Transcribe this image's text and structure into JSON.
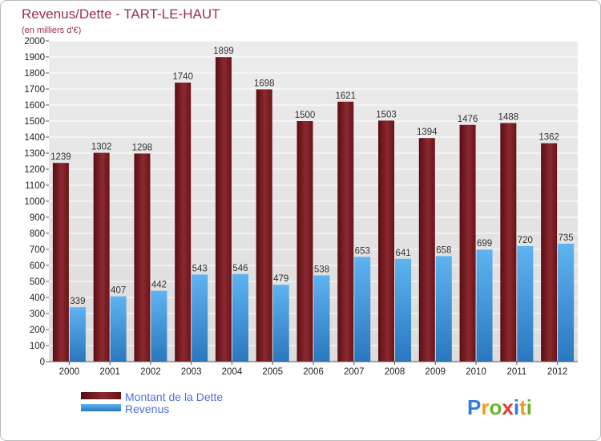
{
  "chart_data": {
    "type": "bar",
    "title": "Revenus/Dette - TART-LE-HAUT",
    "subtitle": "(en milliers d'€)",
    "categories": [
      "2000",
      "2001",
      "2002",
      "2003",
      "2004",
      "2005",
      "2006",
      "2007",
      "2008",
      "2009",
      "2010",
      "2011",
      "2012"
    ],
    "series": [
      {
        "name": "Montant de la Dette",
        "color": "#7a1f24",
        "values": [
          1239,
          1302,
          1298,
          1740,
          1899,
          1698,
          1500,
          1621,
          1503,
          1394,
          1476,
          1488,
          1362
        ]
      },
      {
        "name": "Revenus",
        "color": "#3a9be0",
        "values": [
          339,
          407,
          442,
          543,
          546,
          479,
          538,
          653,
          641,
          658,
          699,
          720,
          735
        ]
      }
    ],
    "ylim": [
      0,
      2000
    ],
    "ytick_step": 100,
    "grid": true,
    "legend_position": "bottom-left",
    "xlabel": "",
    "ylabel": ""
  },
  "brand": {
    "letters": [
      "P",
      "r",
      "o",
      "x",
      "i",
      "t",
      "i"
    ],
    "colors": [
      "#2f7fd8",
      "#f39a1e",
      "#6ab42c",
      "#e23b2e",
      "#2f7fd8",
      "#f39a1e",
      "#6ab42c"
    ]
  }
}
